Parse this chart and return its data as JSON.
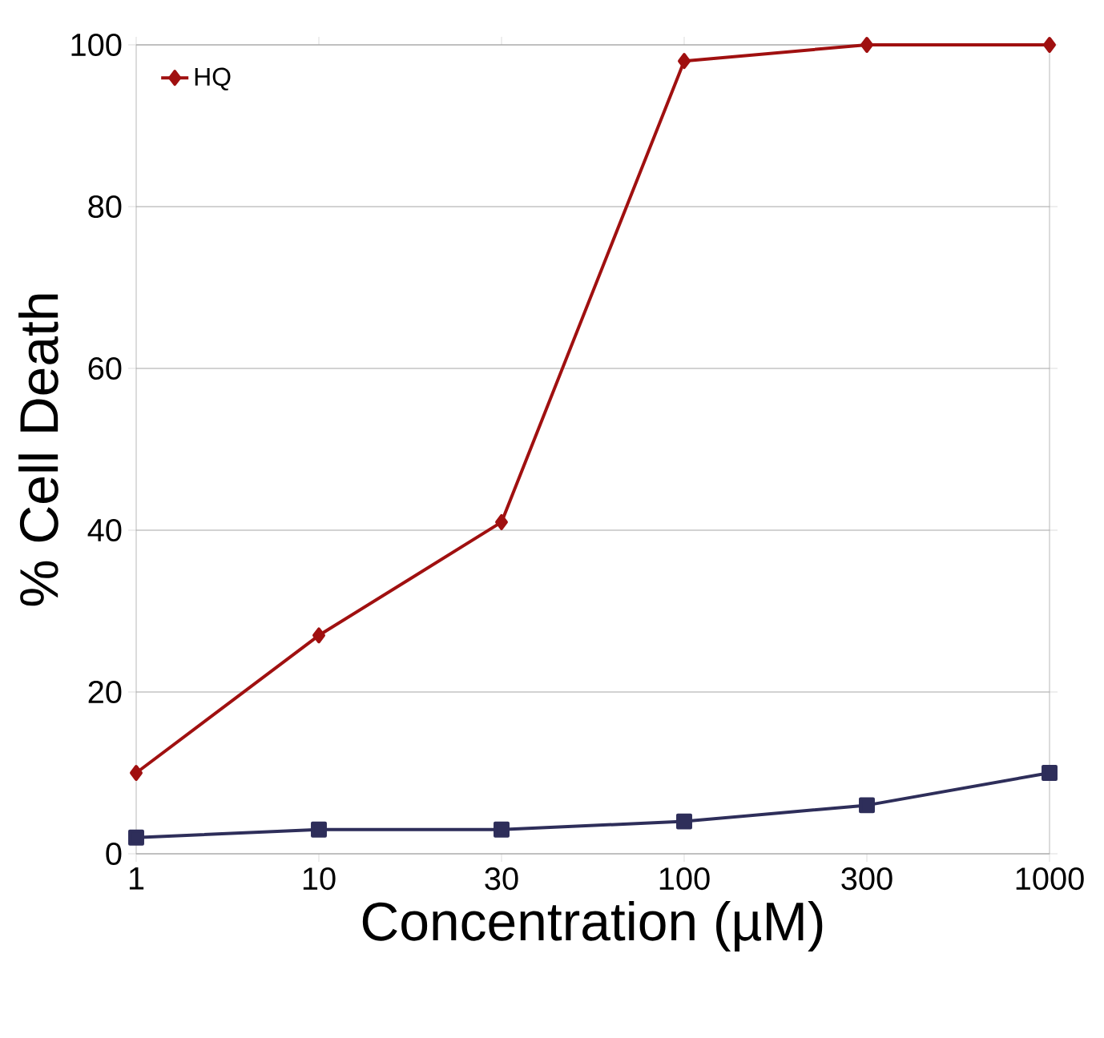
{
  "chart_data": {
    "type": "line",
    "xlabel": "Concentration (µM)",
    "ylabel": "% Cell Death",
    "categories": [
      "1",
      "10",
      "30",
      "100",
      "300",
      "1000"
    ],
    "series": [
      {
        "color": "#2e2e5a",
        "marker": "square",
        "values": [
          2,
          3,
          3,
          4,
          6,
          10
        ]
      },
      {
        "name": "HQ",
        "color": "#a01010",
        "marker": "diamond",
        "values": [
          10,
          27,
          41,
          98,
          100,
          100
        ]
      }
    ],
    "ylim": [
      0,
      100
    ],
    "yticks": [
      0,
      20,
      40,
      60,
      80,
      100
    ],
    "grid": "y",
    "legend": "top left"
  }
}
